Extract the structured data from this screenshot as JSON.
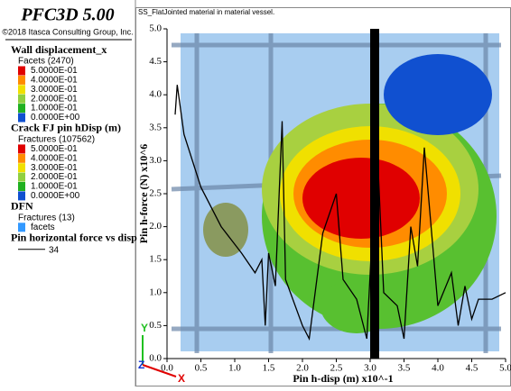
{
  "header": {
    "title": "PFC3D 5.00",
    "copyright": "©2018 Itasca Consulting Group, Inc."
  },
  "legend": [
    {
      "title": "Wall displacement_x",
      "subtitle": "Facets (2470)",
      "entries": [
        {
          "label": "5.0000E-01",
          "color": "#e00000"
        },
        {
          "label": "4.0000E-01",
          "color": "#ff8c00"
        },
        {
          "label": "3.0000E-01",
          "color": "#f0e000"
        },
        {
          "label": "2.0000E-01",
          "color": "#90d040"
        },
        {
          "label": "1.0000E-01",
          "color": "#20b020"
        },
        {
          "label": "0.0000E+00",
          "color": "#1050d0"
        }
      ]
    },
    {
      "title": "Crack FJ pin hDisp (m)",
      "subtitle": "Fractures (107562)",
      "entries": [
        {
          "label": "5.0000E-01",
          "color": "#e00000"
        },
        {
          "label": "4.0000E-01",
          "color": "#ff8c00"
        },
        {
          "label": "3.0000E-01",
          "color": "#f0e000"
        },
        {
          "label": "2.0000E-01",
          "color": "#90d040"
        },
        {
          "label": "1.0000E-01",
          "color": "#20b020"
        },
        {
          "label": "0.0000E+00",
          "color": "#1050d0"
        }
      ]
    },
    {
      "title": "DFN",
      "subtitle": "Fractures (13)",
      "entries": [
        {
          "label": "facets",
          "color": "#3399ff"
        }
      ]
    },
    {
      "title": "Pin horizontal force vs disp",
      "entries": [
        {
          "label": "34",
          "color": "#000000"
        }
      ]
    }
  ],
  "viewport": {
    "title": "SS_FlatJointed material in material vessel.",
    "triad": [
      "Y",
      "Z",
      "X"
    ],
    "plot": {
      "xlabel": "Pin h-disp (m) x10^-1",
      "ylabel": "Pin h-force (N) x10^6",
      "xlim": [
        0,
        5
      ],
      "ylim": [
        0,
        5
      ],
      "xticks": [
        {
          "value": 0,
          "label": "0.0"
        },
        {
          "value": 0.5,
          "label": "0.5"
        },
        {
          "value": 1,
          "label": "1.0"
        },
        {
          "value": 1.5,
          "label": "1.5"
        },
        {
          "value": 2,
          "label": "2.0"
        },
        {
          "value": 2.5,
          "label": "2.5"
        },
        {
          "value": 3,
          "label": "3.0"
        },
        {
          "value": 3.5,
          "label": "3.5"
        },
        {
          "value": 4,
          "label": "4.0"
        },
        {
          "value": 4.5,
          "label": "4.5"
        },
        {
          "value": 5,
          "label": "5.0"
        }
      ],
      "yticks": [
        {
          "value": 0,
          "label": "0.0"
        },
        {
          "value": 0.5,
          "label": "0.5"
        },
        {
          "value": 1,
          "label": "1.0"
        },
        {
          "value": 1.5,
          "label": "1.5"
        },
        {
          "value": 2,
          "label": "2.0"
        },
        {
          "value": 2.5,
          "label": "2.5"
        },
        {
          "value": 3,
          "label": "3.0"
        },
        {
          "value": 3.5,
          "label": "3.5"
        },
        {
          "value": 4,
          "label": "4.0"
        },
        {
          "value": 4.5,
          "label": "4.5"
        },
        {
          "value": 5,
          "label": "5.0"
        }
      ],
      "line": {
        "color": "#000000",
        "x": [
          0.12,
          0.15,
          0.25,
          0.5,
          0.8,
          1.1,
          1.3,
          1.4,
          1.45,
          1.5,
          1.6,
          1.7,
          1.75,
          2.0,
          2.1,
          2.3,
          2.5,
          2.6,
          2.8,
          2.95,
          3.1,
          3.2,
          3.4,
          3.5,
          3.6,
          3.7,
          3.8,
          4.0,
          4.2,
          4.3,
          4.4,
          4.5,
          4.6,
          4.8,
          5.0
        ],
        "y": [
          3.7,
          4.15,
          3.4,
          2.6,
          2.0,
          1.6,
          1.3,
          1.5,
          0.5,
          1.6,
          1.1,
          3.6,
          1.2,
          0.5,
          0.3,
          1.9,
          2.5,
          1.2,
          0.9,
          0.3,
          3.3,
          1.0,
          0.8,
          0.3,
          2.0,
          1.4,
          3.2,
          0.8,
          1.3,
          0.5,
          1.1,
          0.6,
          0.9,
          0.9,
          1.0
        ]
      }
    }
  }
}
